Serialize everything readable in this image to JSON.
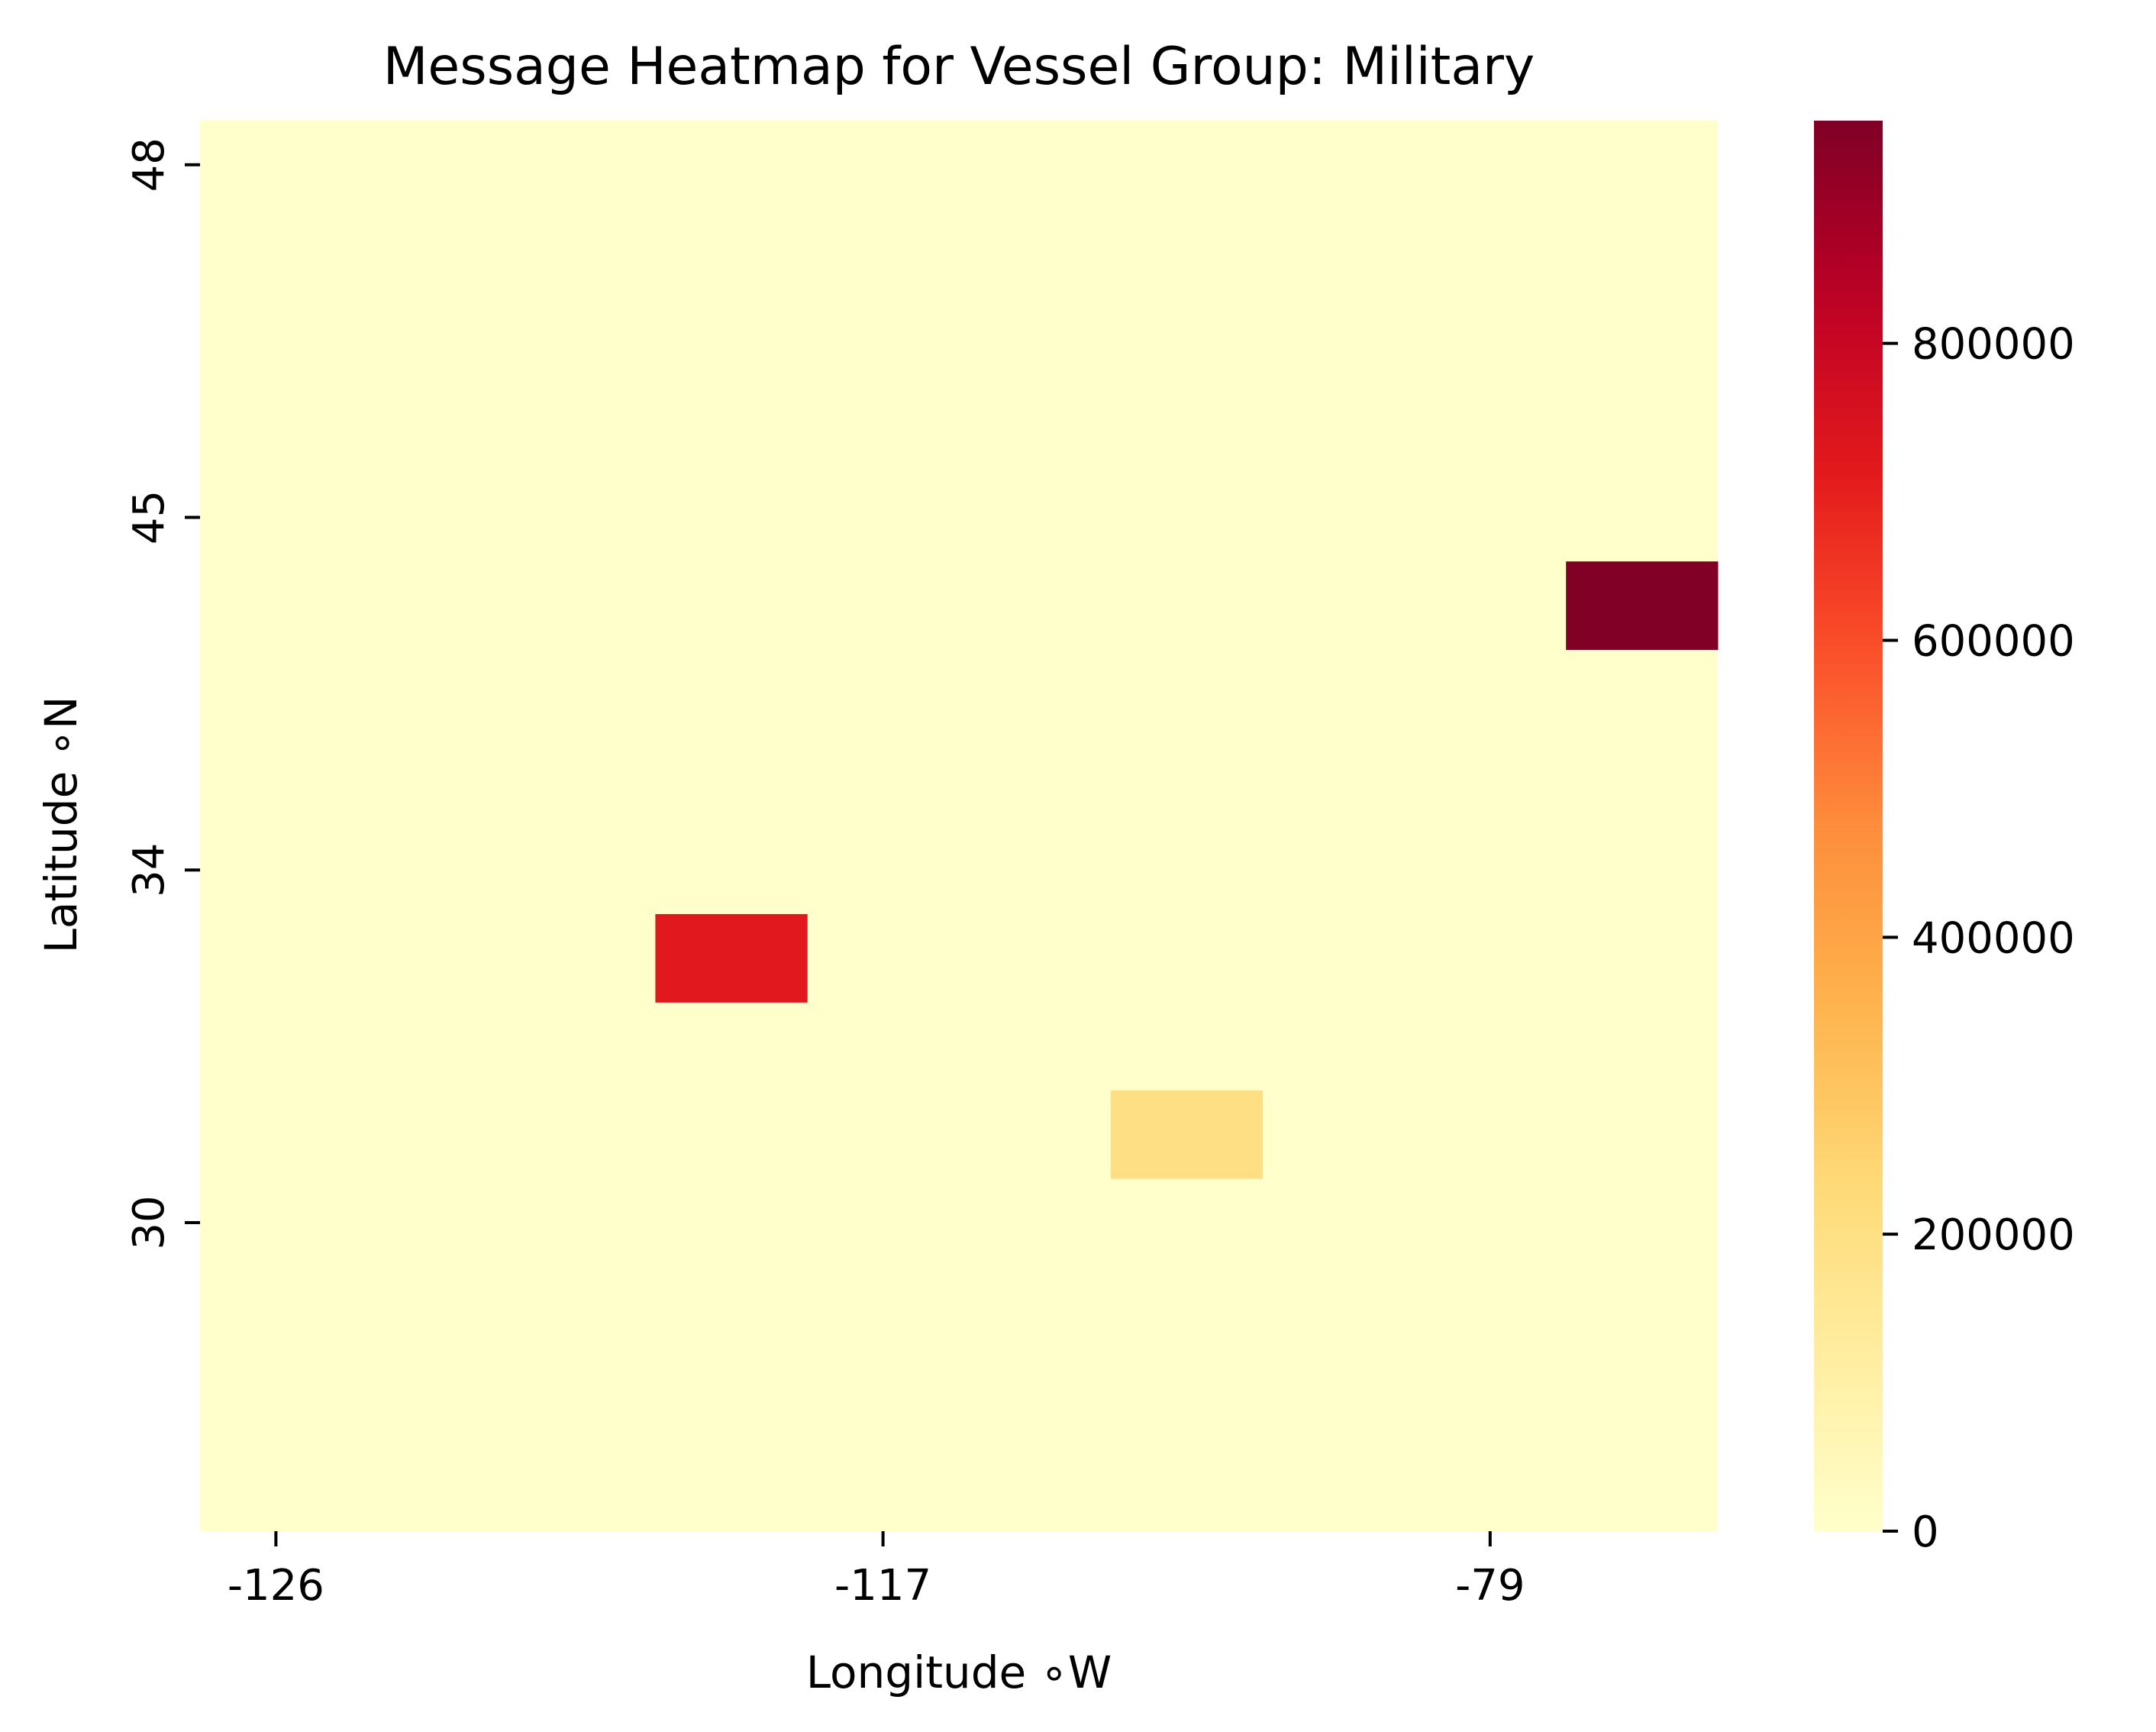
{
  "chart_data": {
    "type": "heatmap",
    "title": "Message Heatmap for Vessel Group: Military",
    "xlabel": "Longitude ∘W",
    "ylabel": "Latitude ∘N",
    "n_cols": 10,
    "n_rows": 16,
    "x_ticks": [
      {
        "label": "-126",
        "col": 0.5
      },
      {
        "label": "-117",
        "col": 4.5
      },
      {
        "label": "-79",
        "col": 8.5
      }
    ],
    "y_ticks": [
      {
        "label": "48",
        "row": 0.5
      },
      {
        "label": "45",
        "row": 4.5
      },
      {
        "label": "34",
        "row": 8.5
      },
      {
        "label": "30",
        "row": 12.5
      }
    ],
    "background_value": 0,
    "cells": [
      {
        "col": 9,
        "row": 5,
        "value": 950000
      },
      {
        "col": 3,
        "row": 9,
        "value": 720000
      },
      {
        "col": 6,
        "row": 11,
        "value": 200000
      }
    ],
    "colorbar": {
      "colormap": "YlOrRd",
      "vmin": 0,
      "vmax": 950000,
      "ticks": [
        0,
        200000,
        400000,
        600000,
        800000
      ]
    }
  }
}
